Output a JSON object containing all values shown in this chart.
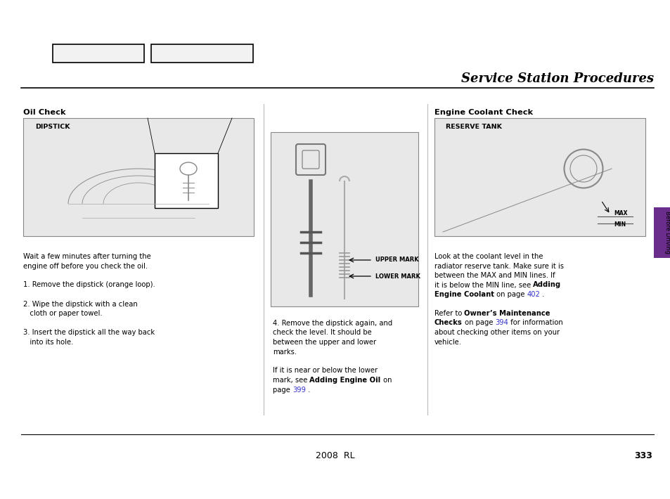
{
  "bg_color": "#ffffff",
  "page_width": 9.54,
  "page_height": 7.1,
  "dpi": 100,
  "title": "Service Station Procedures",
  "title_fontsize": 13.0,
  "sidebar_color": "#6b2d8b",
  "sidebar_text": "Before Driving",
  "text_fontsize": 7.2,
  "label_fontsize": 6.8,
  "header_fontsize": 8.2,
  "footer_text": "2008  RL",
  "footer_page": "333"
}
